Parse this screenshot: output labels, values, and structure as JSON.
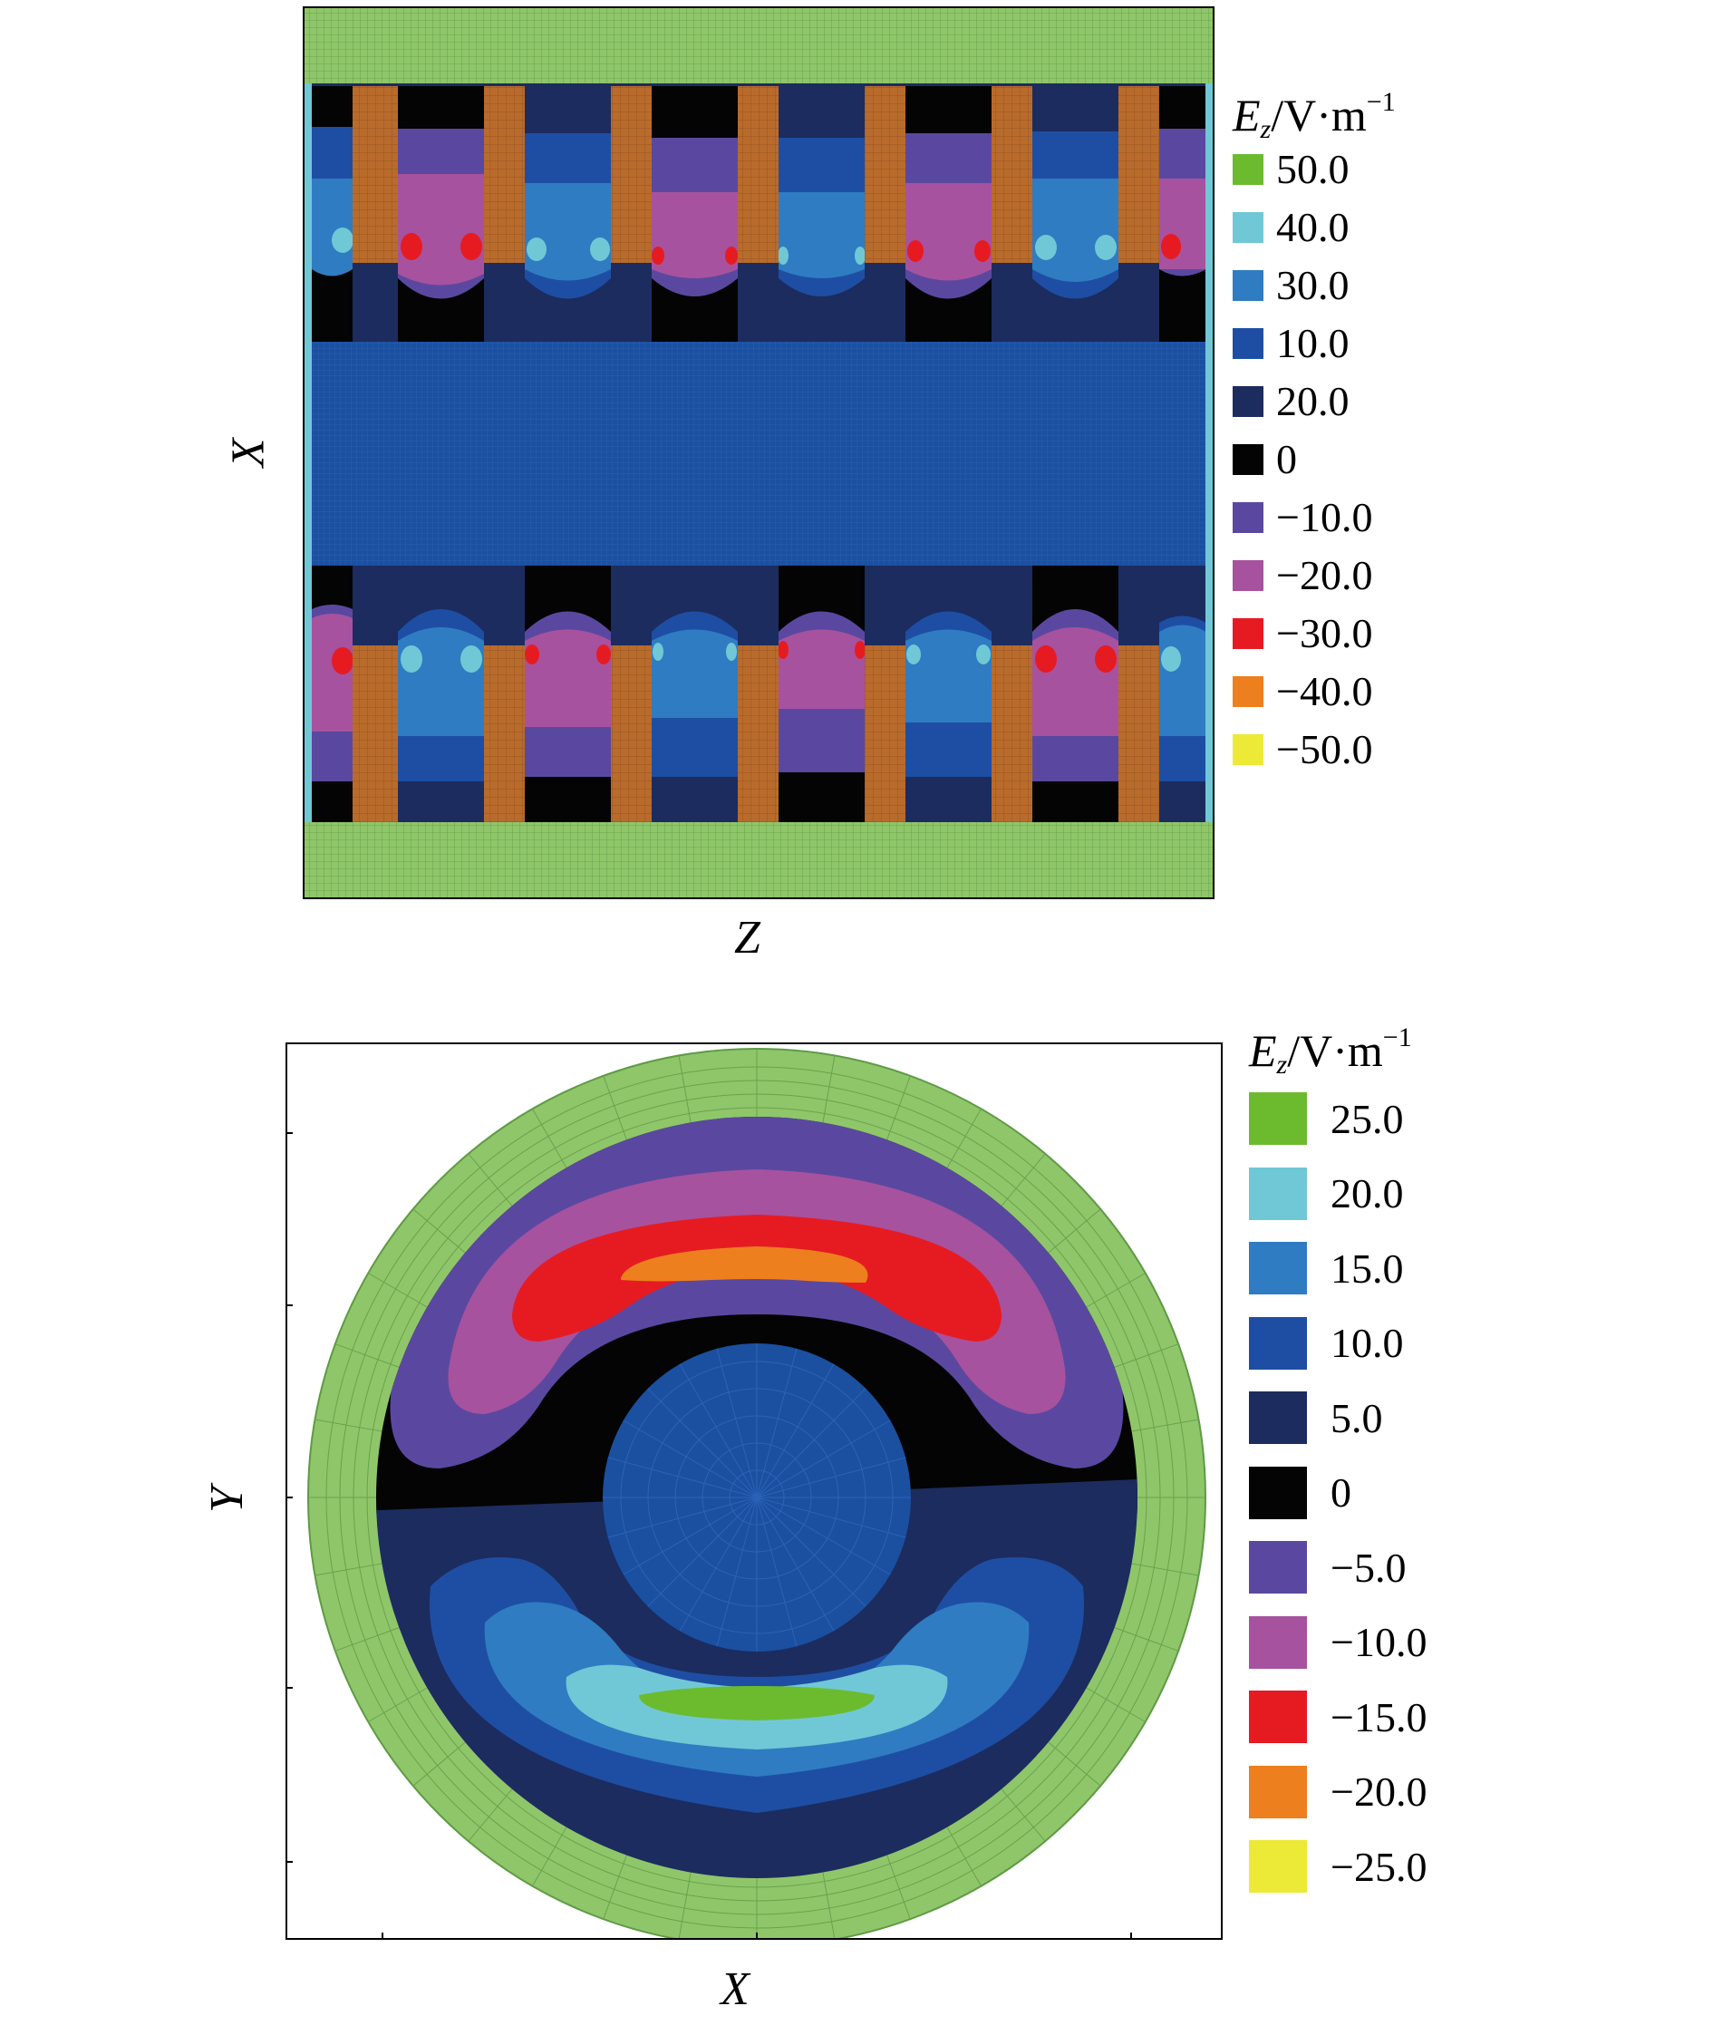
{
  "colors": {
    "green_lbl": "#6cbb2f",
    "cyan": "#70c8d6",
    "light_blue": "#2f7cc2",
    "blue": "#1e4ea3",
    "navy": "#1c2c5f",
    "black": "#040404",
    "purple": "#5a48a0",
    "magenta": "#a7529e",
    "red": "#e61b22",
    "orange": "#ee7f1e",
    "yellow": "#ecea37",
    "mesh_green": "#8fc66a",
    "mesh_blue": "#1b4fa0",
    "brown": "#b96b2c"
  },
  "top_panel": {
    "x_axis_label": "Z",
    "y_axis_label": "X",
    "legend": {
      "symbol": "E",
      "subscript": "z",
      "unit": "/V·m",
      "exponent": "−1",
      "items": [
        {
          "value": "50.0",
          "color": "#6cbb2f"
        },
        {
          "value": "40.0",
          "color": "#70c8d6"
        },
        {
          "value": "30.0",
          "color": "#2f7cc2"
        },
        {
          "value": "10.0",
          "color": "#1e4ea3"
        },
        {
          "value": "20.0",
          "color": "#1c2c5f"
        },
        {
          "value": "0",
          "color": "#040404"
        },
        {
          "value": "−10.0",
          "color": "#5a48a0"
        },
        {
          "value": "−20.0",
          "color": "#a7529e"
        },
        {
          "value": "−30.0",
          "color": "#e61b22"
        },
        {
          "value": "−40.0",
          "color": "#ee7f1e"
        },
        {
          "value": "−50.0",
          "color": "#ecea37"
        }
      ]
    }
  },
  "bottom_panel": {
    "x_axis_label": "X",
    "y_axis_label": "Y",
    "legend": {
      "symbol": "E",
      "subscript": "z",
      "unit": "/V·m",
      "exponent": "−1",
      "items": [
        {
          "value": "25.0",
          "color": "#6cbb2f"
        },
        {
          "value": "20.0",
          "color": "#70c8d6"
        },
        {
          "value": "15.0",
          "color": "#2f7cc2"
        },
        {
          "value": "10.0",
          "color": "#1e4ea3"
        },
        {
          "value": "5.0",
          "color": "#1c2c5f"
        },
        {
          "value": "0",
          "color": "#040404"
        },
        {
          "value": "−5.0",
          "color": "#5a48a0"
        },
        {
          "value": "−10.0",
          "color": "#a7529e"
        },
        {
          "value": "−15.0",
          "color": "#e61b22"
        },
        {
          "value": "−20.0",
          "color": "#ee7f1e"
        },
        {
          "value": "−25.0",
          "color": "#ecea37"
        }
      ]
    }
  }
}
